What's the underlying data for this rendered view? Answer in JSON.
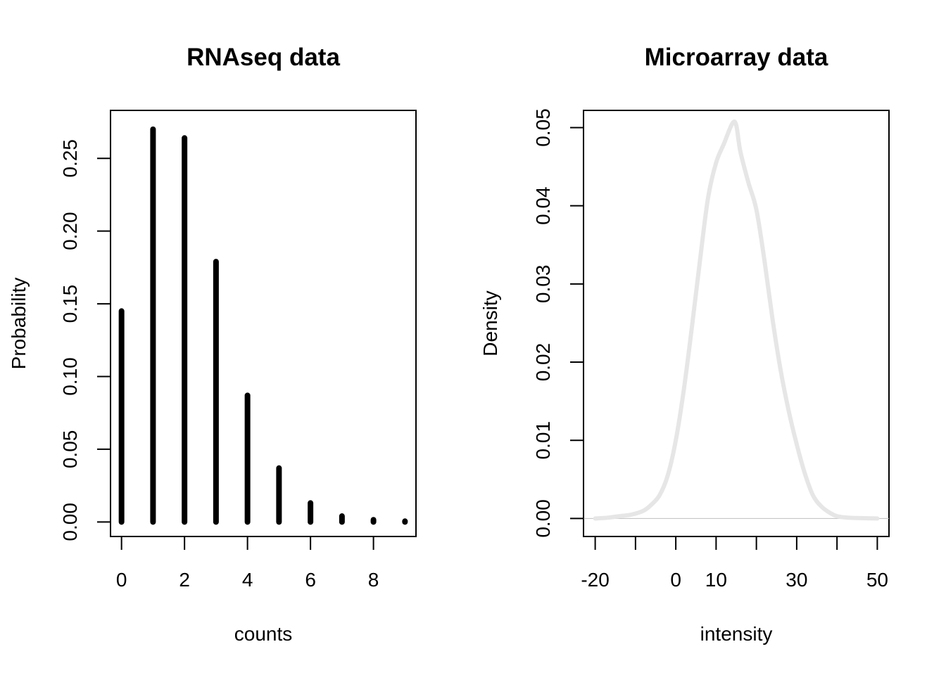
{
  "chart_data": [
    {
      "type": "bar",
      "title": "RNAseq data",
      "xlabel": "counts",
      "ylabel": "Probability",
      "categories": [
        0,
        1,
        2,
        3,
        4,
        5,
        6,
        7,
        8,
        9
      ],
      "values": [
        0.145,
        0.27,
        0.264,
        0.179,
        0.087,
        0.037,
        0.013,
        0.004,
        0.0015,
        0.0005
      ],
      "xlim": [
        -0.35,
        9.35
      ],
      "ylim": [
        -0.01,
        0.283
      ],
      "xticks": [
        0,
        2,
        4,
        6,
        8
      ],
      "xtick_labels": [
        "0",
        "2",
        "4",
        "6",
        "8"
      ],
      "yticks": [
        0,
        0.05,
        0.1,
        0.15,
        0.2,
        0.25
      ],
      "ytick_labels": [
        "0.00",
        "0.05",
        "0.10",
        "0.15",
        "0.20",
        "0.25"
      ],
      "color": "#000000",
      "grid": false
    },
    {
      "type": "line",
      "title": "Microarray data",
      "xlabel": "intensity",
      "ylabel": "Density",
      "x": [
        -20,
        -17,
        -14,
        -11,
        -8,
        -6,
        -4,
        -2,
        0,
        2,
        4,
        6,
        8,
        10,
        12,
        14,
        15,
        16,
        18,
        20,
        22,
        24,
        26,
        28,
        30,
        32,
        34,
        36,
        38,
        40,
        43,
        46,
        50
      ],
      "y": [
        0,
        0.0001,
        0.0003,
        0.0005,
        0.001,
        0.0018,
        0.003,
        0.0055,
        0.01,
        0.0165,
        0.0245,
        0.033,
        0.041,
        0.0455,
        0.048,
        0.0505,
        0.0503,
        0.047,
        0.043,
        0.0395,
        0.033,
        0.0255,
        0.019,
        0.0138,
        0.0095,
        0.0058,
        0.003,
        0.0016,
        0.0008,
        0.0003,
        0.0001,
        5e-05,
        0
      ],
      "xlim": [
        -22.9,
        52.9
      ],
      "ylim": [
        -0.0023,
        0.0522
      ],
      "xticks": [
        -20,
        -10,
        0,
        10,
        20,
        30,
        40,
        50
      ],
      "xtick_labels": [
        "-20",
        "",
        "0",
        "10",
        "",
        "30",
        "",
        "50"
      ],
      "yticks": [
        0,
        0.01,
        0.02,
        0.03,
        0.04,
        0.05
      ],
      "ytick_labels": [
        "0.00",
        "0.01",
        "0.02",
        "0.03",
        "0.04",
        "0.05"
      ],
      "line_color": "#e6e6e6",
      "baseline_color": "#bebebe",
      "grid": false
    }
  ]
}
